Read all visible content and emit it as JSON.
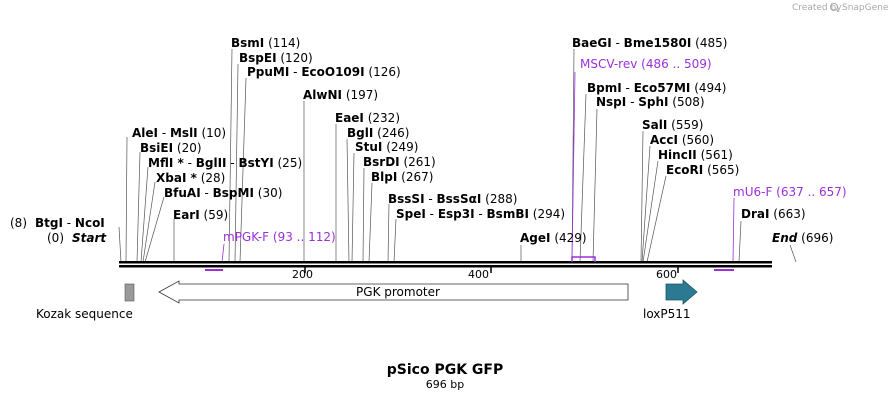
{
  "credit": {
    "prefix": "Created by",
    "brand": "SnapGene"
  },
  "map": {
    "title": "pSico PGK GFP",
    "length_label": "696 bp",
    "ruler_ticks": [
      "200",
      "400",
      "600"
    ],
    "start_label": {
      "pos": "(0)",
      "name": "Start"
    },
    "end_label": {
      "name": "End",
      "pos": "(696)"
    }
  },
  "sites": [
    {
      "pos_left": "(8)",
      "names": [
        "BtgI",
        "NcoI"
      ]
    },
    {
      "names": [
        "AleI",
        "MslI"
      ],
      "pos": "(10)"
    },
    {
      "names": [
        "BsiEI"
      ],
      "pos": "(20)"
    },
    {
      "names": [
        "MflI *",
        "BglII",
        "BstYI"
      ],
      "pos": "(25)"
    },
    {
      "names": [
        "XbaI *"
      ],
      "pos": "(28)"
    },
    {
      "names": [
        "BfuAI",
        "BspMI"
      ],
      "pos": "(30)"
    },
    {
      "names": [
        "EarI"
      ],
      "pos": "(59)"
    },
    {
      "names": [
        "BsmI"
      ],
      "pos": "(114)"
    },
    {
      "names": [
        "BspEI"
      ],
      "pos": "(120)"
    },
    {
      "names": [
        "PpuMI",
        "EcoO109I"
      ],
      "pos": "(126)"
    },
    {
      "names": [
        "AlwNI"
      ],
      "pos": "(197)"
    },
    {
      "names": [
        "EaeI"
      ],
      "pos": "(232)"
    },
    {
      "names": [
        "BglI"
      ],
      "pos": "(246)"
    },
    {
      "names": [
        "StuI"
      ],
      "pos": "(249)"
    },
    {
      "names": [
        "BsrDI"
      ],
      "pos": "(261)"
    },
    {
      "names": [
        "BlpI"
      ],
      "pos": "(267)"
    },
    {
      "names": [
        "BssSI",
        "BssSαI"
      ],
      "pos": "(288)"
    },
    {
      "names": [
        "SpeI",
        "Esp3I",
        "BsmBI"
      ],
      "pos": "(294)"
    },
    {
      "names": [
        "AgeI"
      ],
      "pos": "(429)"
    },
    {
      "names": [
        "BaeGI",
        "Bme1580I"
      ],
      "pos": "(485)"
    },
    {
      "names": [
        "BpmI",
        "Eco57MI"
      ],
      "pos": "(494)"
    },
    {
      "names": [
        "NspI",
        "SphI"
      ],
      "pos": "(508)"
    },
    {
      "names": [
        "SalI"
      ],
      "pos": "(559)"
    },
    {
      "names": [
        "AccI"
      ],
      "pos": "(560)"
    },
    {
      "names": [
        "HincII"
      ],
      "pos": "(561)"
    },
    {
      "names": [
        "EcoRI"
      ],
      "pos": "(565)"
    },
    {
      "names": [
        "DraI"
      ],
      "pos": "(663)"
    }
  ],
  "primers": [
    {
      "name": "mPGK-F",
      "range": "(93 .. 112)"
    },
    {
      "name": "MSCV-rev",
      "range": "(486 .. 509)"
    },
    {
      "name": "mU6-F",
      "range": "(637 .. 657)"
    }
  ],
  "features": [
    {
      "name": "Kozak sequence",
      "color": "#9a9a9a"
    },
    {
      "name": "PGK promoter",
      "color": "#ffffff"
    },
    {
      "name": "loxP511",
      "color": "#2c7a92"
    }
  ],
  "colors": {
    "primer": "#9b30d9",
    "backbone": "#000000"
  }
}
